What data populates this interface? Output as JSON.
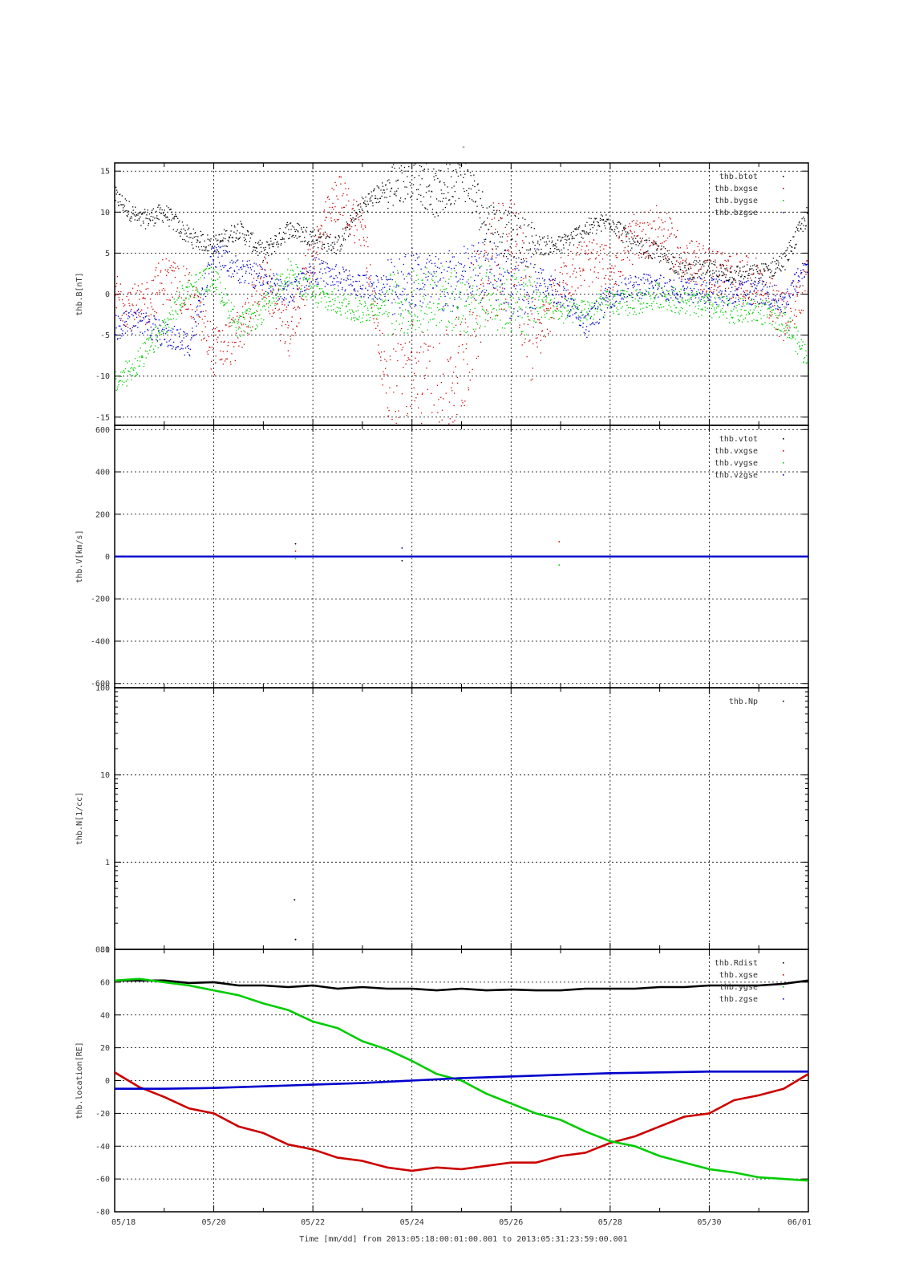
{
  "figure": {
    "title": "-",
    "x_caption": "Time [mm/dd]  from 2013:05:18:00:01:00.001  to  2013:05:31:23:59:00.001",
    "x_tick_labels": [
      "05/18",
      "05/20",
      "05/22",
      "05/24",
      "05/26",
      "05/28",
      "05/30",
      "06/01"
    ]
  },
  "colors": {
    "black": "#000000",
    "red": "#cc0000",
    "green": "#00cc00",
    "blue": "#0000cc"
  },
  "chart_data": [
    {
      "type": "scatter",
      "ylabel": "thb.B[nT]",
      "ylim": [
        -16,
        16
      ],
      "yticks": [
        -15,
        -10,
        -5,
        0,
        5,
        10,
        15
      ],
      "xlim": [
        0,
        14
      ],
      "x_unit": "days since 05/18",
      "grid": true,
      "legend_position": "top-right",
      "series": [
        {
          "name": "thb.btot",
          "color": "#000000",
          "x": [
            0,
            0.5,
            1,
            1.5,
            2,
            2.5,
            3,
            3.5,
            4,
            4.5,
            5,
            5.5,
            6,
            6.5,
            7,
            7.5,
            8,
            8.5,
            9,
            9.5,
            10,
            10.5,
            11,
            11.5,
            12,
            12.5,
            13,
            13.5,
            14
          ],
          "y": [
            12,
            9,
            10,
            7,
            6,
            8,
            5,
            8,
            7,
            6,
            11,
            13,
            15,
            12,
            15,
            9,
            7,
            6,
            6,
            8,
            9,
            6,
            5,
            3,
            3,
            2.5,
            2.5,
            4,
            10
          ]
        },
        {
          "name": "thb.bxgse",
          "color": "#cc0000",
          "x": [
            0,
            0.5,
            1,
            1.5,
            2,
            2.5,
            3,
            3.5,
            4,
            4.5,
            5,
            5.5,
            6,
            6.5,
            7,
            7.5,
            8,
            8.5,
            9,
            9.5,
            10,
            10.5,
            11,
            11.5,
            12,
            12.5,
            13,
            13.5,
            14
          ],
          "y": [
            0,
            -2,
            2,
            0,
            -7,
            -5,
            2,
            -5,
            5,
            12,
            8,
            -12,
            -10,
            -14,
            -8,
            4,
            6,
            -6,
            2,
            4,
            3,
            7,
            8,
            4,
            3,
            2,
            1.5,
            -3,
            2
          ]
        },
        {
          "name": "thb.bygse",
          "color": "#00cc00",
          "x": [
            0,
            0.5,
            1,
            1.5,
            2,
            2.5,
            3,
            3.5,
            4,
            4.5,
            5,
            5.5,
            6,
            6.5,
            7,
            7.5,
            8,
            8.5,
            9,
            9.5,
            10,
            10.5,
            11,
            11.5,
            12,
            12.5,
            13,
            13.5,
            14
          ],
          "y": [
            -11,
            -8,
            -4,
            1,
            2,
            -4,
            -2,
            3,
            0,
            -1,
            -2,
            -1,
            -1,
            0,
            -1,
            0,
            -1,
            -1,
            -2,
            -2,
            -1,
            -1,
            0,
            -1,
            -1.5,
            -2,
            -2,
            -3,
            -8
          ]
        },
        {
          "name": "thb.bzgse",
          "color": "#0000cc",
          "x": [
            0,
            0.5,
            1,
            1.5,
            2,
            2.5,
            3,
            3.5,
            4,
            4.5,
            5,
            5.5,
            6,
            6.5,
            7,
            7.5,
            8,
            8.5,
            9,
            9.5,
            10,
            10.5,
            11,
            11.5,
            12,
            12.5,
            13,
            13.5,
            14
          ],
          "y": [
            -4,
            -3,
            -5,
            -6,
            5,
            3,
            2,
            0,
            3,
            2,
            1,
            1,
            2,
            1,
            2,
            3,
            1,
            2,
            0,
            -4,
            0,
            1,
            1,
            0.5,
            0.5,
            0,
            0.5,
            -1,
            4
          ]
        }
      ]
    },
    {
      "type": "scatter",
      "ylabel": "thb.V[km/s]",
      "ylim": [
        -620,
        620
      ],
      "yticks": [
        -600,
        -400,
        -200,
        0,
        200,
        400,
        600
      ],
      "xlim": [
        0,
        14
      ],
      "x_unit": "days since 05/18",
      "grid": true,
      "legend_position": "top-right",
      "series": [
        {
          "name": "thb.vtot",
          "color": "#000000",
          "x": [
            0,
            14
          ],
          "y": [
            0,
            0
          ]
        },
        {
          "name": "thb.vxgse",
          "color": "#cc0000",
          "x": [
            0,
            3.65,
            14
          ],
          "y": [
            0,
            -50,
            0
          ]
        },
        {
          "name": "thb.vygse",
          "color": "#00cc00",
          "x": [
            0,
            8.97,
            14
          ],
          "y": [
            0,
            60,
            0
          ]
        },
        {
          "name": "thb.vzgse",
          "color": "#0000cc",
          "x": [
            0,
            14
          ],
          "y": [
            0,
            0
          ]
        }
      ],
      "sparse_points": [
        {
          "x": 3.65,
          "y": 60
        },
        {
          "x": 3.65,
          "y": 25
        },
        {
          "x": 3.65,
          "y": -10
        },
        {
          "x": 5.8,
          "y": 40
        },
        {
          "x": 5.8,
          "y": -20
        },
        {
          "x": 8.97,
          "y": 70
        },
        {
          "x": 8.97,
          "y": -40
        }
      ]
    },
    {
      "type": "scatter",
      "ylabel": "thb.N[1/cc]",
      "yscale": "log",
      "ylim": [
        0.1,
        100
      ],
      "yticks": [
        0.1,
        1,
        10,
        100
      ],
      "ytick_labels": [
        "0.1",
        "1",
        "10",
        "100"
      ],
      "xlim": [
        0,
        14
      ],
      "x_unit": "days since 05/18",
      "grid": true,
      "legend_position": "top-right",
      "series": [
        {
          "name": "thb.Np",
          "color": "#000000",
          "x": [
            3.63,
            3.65
          ],
          "y": [
            0.37,
            0.13
          ]
        }
      ]
    },
    {
      "type": "line",
      "ylabel": "thb.location[RE]",
      "ylim": [
        -80,
        80
      ],
      "yticks": [
        -80,
        -60,
        -40,
        -20,
        0,
        20,
        40,
        60,
        80
      ],
      "xlim": [
        0,
        14
      ],
      "x_unit": "days since 05/18",
      "grid": true,
      "legend_position": "top-right",
      "series": [
        {
          "name": "thb.Rdist",
          "color": "#000000",
          "x": [
            0,
            0.5,
            1,
            1.5,
            2,
            2.5,
            3,
            3.5,
            4,
            4.5,
            5,
            5.5,
            6,
            6.5,
            7,
            7.5,
            8,
            8.5,
            9,
            9.5,
            10,
            10.5,
            11,
            11.5,
            12,
            12.5,
            13,
            13.5,
            14
          ],
          "y": [
            61,
            61,
            61,
            59.5,
            60,
            58,
            58,
            57,
            58,
            56,
            57,
            56,
            56,
            55,
            56,
            55,
            55.5,
            55,
            55,
            56,
            56,
            56,
            57,
            57,
            58,
            58,
            58,
            59,
            61
          ]
        },
        {
          "name": "thb.xgse",
          "color": "#cc0000",
          "x": [
            0,
            0.5,
            1,
            1.5,
            2,
            2.5,
            3,
            3.5,
            4,
            4.5,
            5,
            5.5,
            6,
            6.5,
            7,
            7.5,
            8,
            8.5,
            9,
            9.5,
            10,
            10.5,
            11,
            11.5,
            12,
            12.5,
            13,
            13.5,
            14
          ],
          "y": [
            5,
            -4,
            -10,
            -17,
            -20,
            -28,
            -32,
            -39,
            -42,
            -47,
            -49,
            -53,
            -55,
            -53,
            -54,
            -52,
            -50,
            -50,
            -46,
            -44,
            -38,
            -34,
            -28,
            -22,
            -20,
            -12,
            -9,
            -5,
            4
          ]
        },
        {
          "name": "thb.ygse",
          "color": "#00cc00",
          "x": [
            0,
            0.5,
            1,
            1.5,
            2,
            2.5,
            3,
            3.5,
            4,
            4.5,
            5,
            5.5,
            6,
            6.5,
            7,
            7.5,
            8,
            8.5,
            9,
            9.5,
            10,
            10.5,
            11,
            11.5,
            12,
            12.5,
            13,
            13.5,
            14
          ],
          "y": [
            61,
            62,
            60,
            58,
            55,
            52,
            47,
            43,
            36,
            32,
            24,
            19,
            12,
            4,
            0,
            -8,
            -14,
            -20,
            -24,
            -31,
            -37,
            -40,
            -46,
            -50,
            -54,
            -56,
            -59,
            -60,
            -61
          ]
        },
        {
          "name": "thb.zgse",
          "color": "#0000cc",
          "x": [
            0,
            1,
            2,
            3,
            4,
            5,
            6,
            7,
            8,
            9,
            10,
            11,
            12,
            13,
            14
          ],
          "y": [
            -5,
            -5,
            -4.5,
            -3.5,
            -2.5,
            -1.5,
            0,
            1.5,
            2.5,
            3.5,
            4.5,
            5,
            5.5,
            5.5,
            5.5
          ]
        }
      ]
    }
  ]
}
